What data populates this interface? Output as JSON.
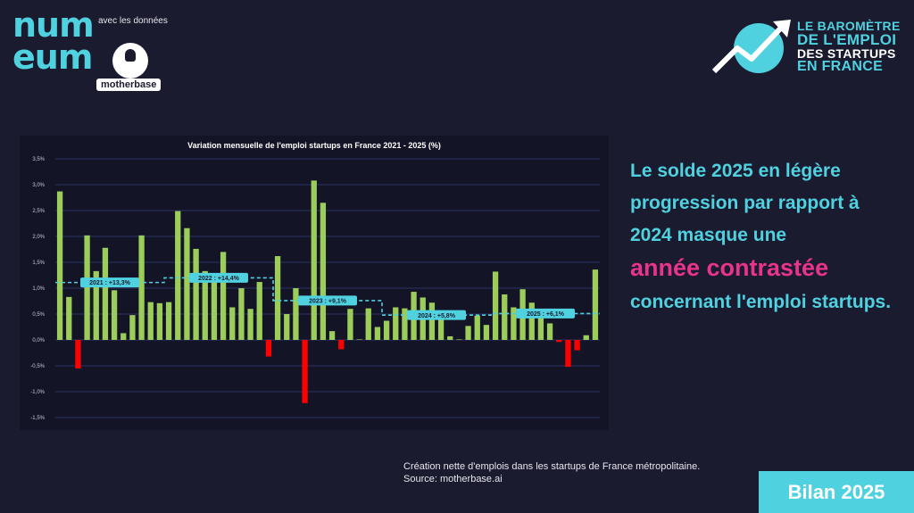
{
  "branding": {
    "logo_lines": [
      "num",
      "eum"
    ],
    "avec_text": "avec les données",
    "motherbase_label": "motherbase",
    "barometre_lines": [
      "LE BAROMÈTRE",
      "DE L'EMPLOI",
      "DES STARTUPS",
      "EN FRANCE"
    ]
  },
  "headline": {
    "part1": "Le solde 2025 en légère progression par rapport à 2024 masque une",
    "highlight": "année contrastée",
    "part2": "concernant l'emploi startups."
  },
  "source": {
    "line1": "Création nette d'emplois dans les startups de France métropolitaine.",
    "line2": "Source: motherbase.ai"
  },
  "bilan_label": "Bilan 2025",
  "colors": {
    "positive": "#9ccc5a",
    "negative": "#ff0000",
    "accent": "#4fd1df",
    "pink": "#e8348c"
  },
  "chart_data": {
    "type": "bar",
    "title": "Variation mensuelle de l'emploi startups en France 2021 - 2025 (%)",
    "ylim": [
      -1.5,
      3.5
    ],
    "yticks": [
      "3,5%",
      "3,0%",
      "2,5%",
      "2,0%",
      "1,5%",
      "1,0%",
      "0,5%",
      "0,0%",
      "-0,5%",
      "-1,0%",
      "-1,5%"
    ],
    "ytick_values": [
      3.5,
      3.0,
      2.5,
      2.0,
      1.5,
      1.0,
      0.5,
      0.0,
      -0.5,
      -1.0,
      -1.5
    ],
    "values": [
      2.87,
      0.83,
      -0.55,
      2.02,
      1.33,
      1.78,
      0.96,
      0.13,
      0.48,
      2.02,
      0.73,
      0.71,
      0.73,
      2.49,
      2.16,
      1.76,
      1.33,
      1.12,
      1.7,
      0.63,
      1.0,
      0.6,
      1.12,
      -0.32,
      1.62,
      0.5,
      1.0,
      -1.22,
      3.08,
      2.65,
      0.17,
      -0.18,
      0.6,
      0.01,
      0.61,
      0.25,
      0.37,
      0.63,
      0.61,
      0.93,
      0.82,
      0.72,
      0.41,
      0.07,
      0.01,
      0.27,
      0.47,
      0.29,
      1.32,
      0.88,
      0.63,
      0.98,
      0.72,
      0.43,
      0.32,
      -0.04,
      -0.52,
      -0.2,
      0.09,
      1.36
    ],
    "annual": [
      {
        "label": "2021 : +13,3%",
        "avg": 1.11
      },
      {
        "label": "2022 : +14,4%",
        "avg": 1.2
      },
      {
        "label": "2023 : +9,1%",
        "avg": 0.76
      },
      {
        "label": "2024 : +5,8%",
        "avg": 0.48
      },
      {
        "label": "2025 : +6,1%",
        "avg": 0.51
      }
    ]
  }
}
